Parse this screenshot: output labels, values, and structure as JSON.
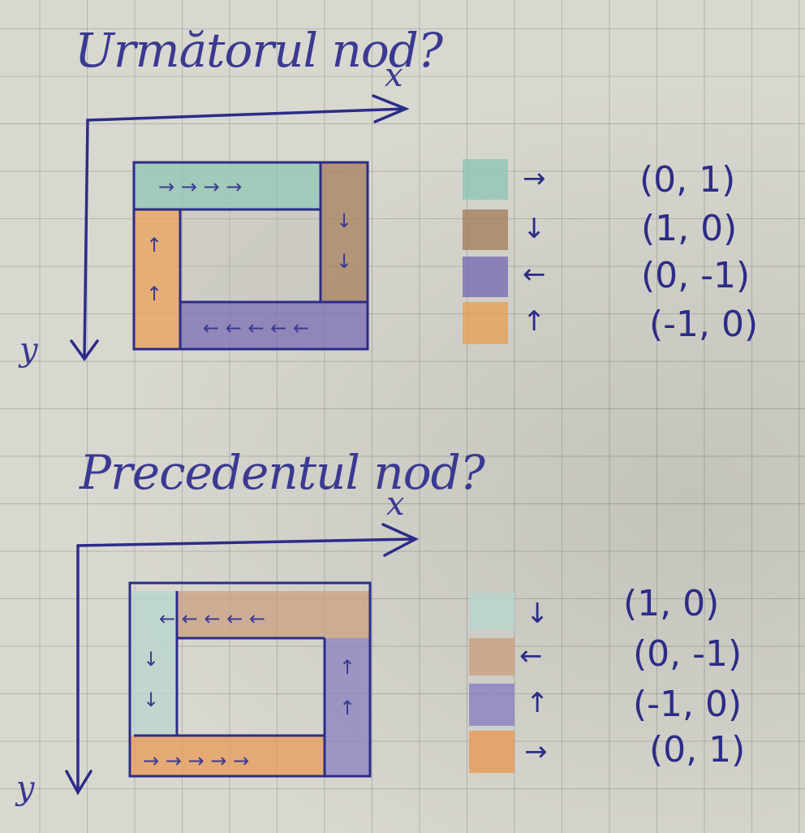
{
  "sections": [
    {
      "title": "Următorul nod?",
      "x_axis_label": "x",
      "y_axis_label": "y",
      "legend": [
        {
          "color": "#8ec6b4",
          "arrow": "→",
          "vector": "(0, 1)"
        },
        {
          "color": "#a57f5c",
          "arrow": "↓",
          "vector": "(1, 0)"
        },
        {
          "color": "#7a6cb4",
          "arrow": "←",
          "vector": "(0, -1)"
        },
        {
          "color": "#e8a055",
          "arrow": "↑",
          "vector": "(-1, 0)"
        }
      ]
    },
    {
      "title": "Precedentul nod?",
      "x_axis_label": "x",
      "y_axis_label": "y",
      "legend": [
        {
          "color": "#b9d6cd",
          "arrow": "↓",
          "vector": "(1, 0)"
        },
        {
          "color": "#caa080",
          "arrow": "←",
          "vector": "(0, -1)"
        },
        {
          "color": "#8a80c0",
          "arrow": "↑",
          "vector": "(-1, 0)"
        },
        {
          "color": "#e89a55",
          "arrow": "→",
          "vector": "(0, 1)"
        }
      ]
    }
  ],
  "colors": {
    "ink": "#2c2c88",
    "paper": "#d9d8d0",
    "grid": "#8a8a8a"
  }
}
